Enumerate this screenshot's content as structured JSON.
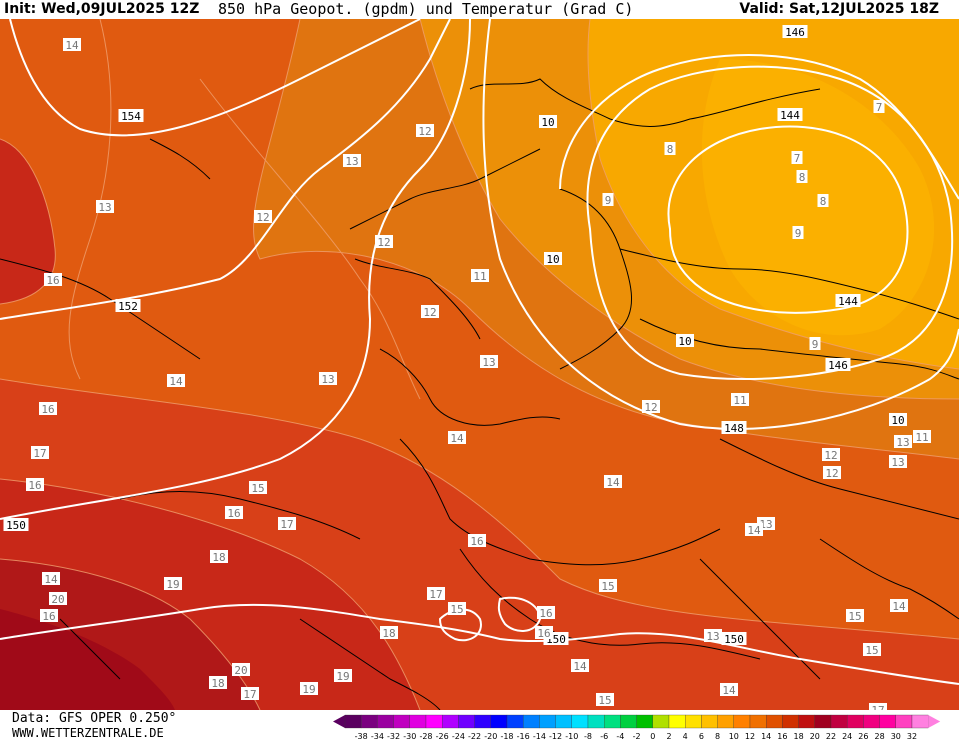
{
  "header": {
    "init": "Init: Wed,09JUL2025 12Z",
    "title": "850 hPa Geopot. (gpdm) und Temperatur (Grad C)",
    "valid": "Valid: Sat,12JUL2025 18Z"
  },
  "footer": {
    "source": "Data: GFS OPER 0.250°",
    "site": "WWW.WETTERZENTRALE.DE"
  },
  "legend": {
    "ticks": [
      "-38",
      "-34",
      "-32",
      "-30",
      "-28",
      "-26",
      "-24",
      "-22",
      "-20",
      "-18",
      "-16",
      "-14",
      "-12",
      "-10",
      "-8",
      "-6",
      "-4",
      "-2",
      "0",
      "2",
      "4",
      "6",
      "8",
      "10",
      "12",
      "14",
      "16",
      "18",
      "20",
      "22",
      "24",
      "26",
      "28",
      "30",
      "32"
    ],
    "colors": [
      "#5a0060",
      "#7a0080",
      "#9a00a0",
      "#c000c0",
      "#e000e0",
      "#ff00ff",
      "#b000ff",
      "#7000ff",
      "#3000ff",
      "#0000ff",
      "#0040ff",
      "#0080ff",
      "#00a0ff",
      "#00c0ff",
      "#00e0ff",
      "#00e0c0",
      "#00e080",
      "#00d040",
      "#00c000",
      "#b0e000",
      "#ffff00",
      "#ffe000",
      "#ffc000",
      "#ffa000",
      "#ff8000",
      "#f07000",
      "#e05000",
      "#d03000",
      "#c01010",
      "#a00020",
      "#c00040",
      "#e00060",
      "#f00080",
      "#ff00a0",
      "#ff40c0",
      "#ff80e0"
    ]
  },
  "map": {
    "geopotential_labels": [
      "146",
      "154",
      "144",
      "152",
      "10",
      "10",
      "10",
      "144",
      "146",
      "150",
      "148",
      "10",
      "150",
      "150"
    ],
    "temperature_labels": [
      "14",
      "13",
      "12",
      "13",
      "12",
      "16",
      "12",
      "11",
      "12",
      "16",
      "14",
      "13",
      "13",
      "17",
      "16",
      "16",
      "17",
      "18",
      "14",
      "19",
      "15",
      "14",
      "20",
      "12",
      "13",
      "16",
      "17",
      "15",
      "16",
      "18",
      "15",
      "16",
      "13",
      "15",
      "13",
      "14",
      "11",
      "12",
      "14",
      "14",
      "15",
      "14",
      "19",
      "20",
      "18",
      "17",
      "19",
      "15",
      "16",
      "14",
      "11",
      "13",
      "12",
      "9",
      "8",
      "7",
      "7",
      "8",
      "9",
      "9",
      "8",
      "17"
    ]
  }
}
